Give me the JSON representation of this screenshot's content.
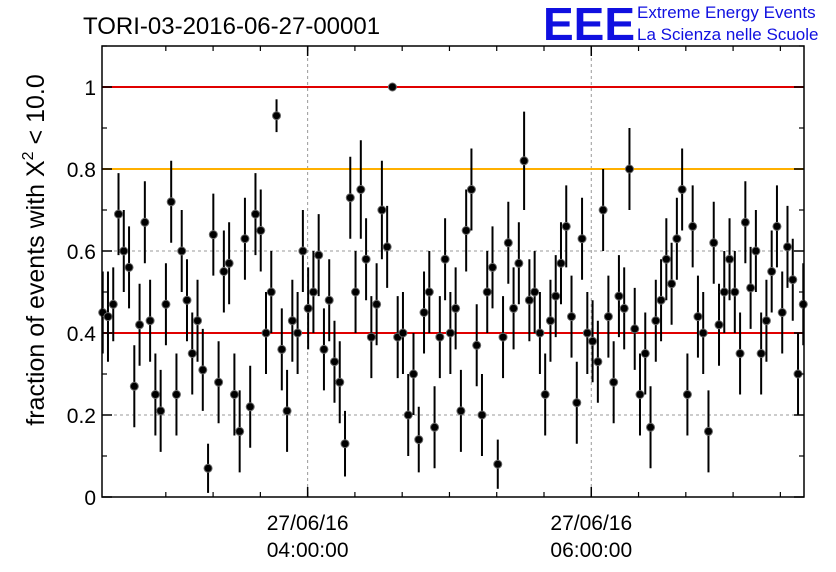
{
  "header": {
    "title": "TORI-03-2016-06-27-00001",
    "logo_letters": "EEE",
    "logo_line1": "Extreme Energy Events",
    "logo_line2": "La Scienza nelle Scuole"
  },
  "colors": {
    "logo": "#1010e0",
    "ref_red": "#e00000",
    "ref_orange": "#ffb000",
    "points": "#000000",
    "grid": "#999999"
  },
  "chart_data": {
    "type": "scatter",
    "title": "TORI-03-2016-06-27-00001",
    "ylabel": "fraction of events with Χ² < 10.0",
    "ylabel_main": "fraction of events with Χ",
    "ylabel_sup": "2",
    "ylabel_tail": " < 10.0",
    "x_unit": "hours",
    "xlim": [
      2.55,
      7.5
    ],
    "ylim": [
      0,
      1.1
    ],
    "x_ticks": [
      {
        "value": 4.0,
        "label_date": "27/06/16",
        "label_time": "04:00:00"
      },
      {
        "value": 6.0,
        "label_date": "27/06/16",
        "label_time": "06:00:00"
      }
    ],
    "y_ticks": [
      {
        "value": 0,
        "label": "0"
      },
      {
        "value": 0.2,
        "label": "0.2"
      },
      {
        "value": 0.4,
        "label": "0.4"
      },
      {
        "value": 0.6,
        "label": "0.6"
      },
      {
        "value": 0.8,
        "label": "0.8"
      },
      {
        "value": 1.0,
        "label": "1"
      }
    ],
    "reference_lines": [
      {
        "y": 1.0,
        "color": "#e00000"
      },
      {
        "y": 0.8,
        "color": "#ffb000"
      },
      {
        "y": 0.4,
        "color": "#e00000"
      }
    ],
    "grid": true,
    "series": [
      {
        "values": [
          0.45,
          0.44,
          0.47,
          0.69,
          0.6,
          0.56,
          0.27,
          0.42,
          0.67,
          0.43,
          0.25,
          0.21,
          0.47,
          0.72,
          0.25,
          0.6,
          0.48,
          0.35,
          0.43,
          0.31,
          0.07,
          0.64,
          0.28,
          0.55,
          0.57,
          0.25,
          0.16,
          0.63,
          0.22,
          0.69,
          0.65,
          0.4,
          0.5,
          0.93,
          0.36,
          0.21,
          0.43,
          0.4,
          0.6,
          0.46,
          0.5,
          0.59,
          0.36,
          0.48,
          0.33,
          0.28,
          0.13,
          0.73,
          0.5,
          0.75,
          0.58,
          0.39,
          0.47,
          0.7,
          0.61,
          1.0,
          0.39,
          0.4,
          0.2,
          0.3,
          0.14,
          0.45,
          0.5,
          0.17,
          0.39,
          0.58,
          0.4,
          0.46,
          0.21,
          0.65,
          0.75,
          0.37,
          0.2,
          0.5,
          0.56,
          0.08,
          0.39,
          0.62,
          0.46,
          0.57,
          0.82,
          0.48,
          0.5,
          0.4,
          0.25,
          0.43,
          0.49,
          0.57,
          0.66,
          0.44,
          0.23,
          0.63,
          0.4,
          0.38,
          0.33,
          0.7,
          0.44,
          0.28,
          0.49,
          0.46,
          0.8,
          0.41,
          0.25,
          0.35,
          0.17,
          0.43,
          0.48,
          0.58,
          0.52,
          0.63,
          0.75,
          0.25,
          0.66,
          0.44,
          0.4,
          0.16,
          0.62,
          0.42,
          0.5,
          0.58,
          0.5,
          0.35,
          0.67,
          0.51,
          0.6,
          0.35,
          0.43,
          0.55,
          0.66,
          0.45,
          0.61,
          0.53,
          0.3,
          0.47
        ],
        "errors": [
          0.1,
          0.11,
          0.09,
          0.1,
          0.1,
          0.1,
          0.1,
          0.1,
          0.1,
          0.1,
          0.1,
          0.1,
          0.1,
          0.1,
          0.1,
          0.1,
          0.1,
          0.1,
          0.1,
          0.1,
          0.06,
          0.1,
          0.1,
          0.1,
          0.1,
          0.1,
          0.1,
          0.1,
          0.1,
          0.1,
          0.1,
          0.1,
          0.1,
          0.04,
          0.1,
          0.1,
          0.1,
          0.1,
          0.1,
          0.1,
          0.1,
          0.1,
          0.1,
          0.1,
          0.1,
          0.1,
          0.08,
          0.1,
          0.1,
          0.12,
          0.1,
          0.1,
          0.1,
          0.12,
          0.1,
          0.0,
          0.1,
          0.1,
          0.1,
          0.1,
          0.08,
          0.1,
          0.1,
          0.1,
          0.1,
          0.1,
          0.1,
          0.1,
          0.1,
          0.1,
          0.1,
          0.1,
          0.1,
          0.1,
          0.1,
          0.06,
          0.1,
          0.1,
          0.1,
          0.1,
          0.12,
          0.1,
          0.1,
          0.1,
          0.1,
          0.1,
          0.1,
          0.1,
          0.1,
          0.1,
          0.1,
          0.1,
          0.1,
          0.1,
          0.1,
          0.1,
          0.1,
          0.1,
          0.1,
          0.1,
          0.1,
          0.1,
          0.1,
          0.1,
          0.1,
          0.1,
          0.1,
          0.1,
          0.1,
          0.1,
          0.1,
          0.1,
          0.1,
          0.1,
          0.1,
          0.1,
          0.1,
          0.1,
          0.1,
          0.1,
          0.1,
          0.1,
          0.1,
          0.1,
          0.1,
          0.1,
          0.1,
          0.1,
          0.1,
          0.1,
          0.1,
          0.1,
          0.1,
          0.1
        ]
      }
    ]
  }
}
